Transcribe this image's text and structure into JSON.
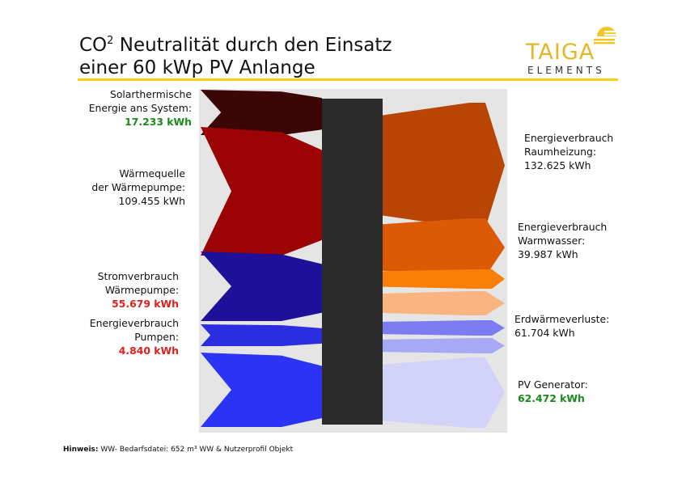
{
  "header": {
    "title_prefix": "CO",
    "title_sup": "2",
    "title_line1_rest": " Neutralität durch den Einsatz",
    "title_line2": "einer 60 kWp PV Anlange"
  },
  "logo": {
    "brand": "TAIGA",
    "sub": "ELEMENTS"
  },
  "colors": {
    "accent_rule": "#f7d117",
    "logo_gold": "#e3b628",
    "value_green": "#1a8a1a",
    "value_red": "#e0201e",
    "hub": "#2b2b2b",
    "background_panel": "#e5e5e5"
  },
  "inputs": [
    {
      "label_lines": [
        "Solarthermische",
        "Energie ans System:"
      ],
      "value": "17.233 kWh",
      "value_style": "green",
      "color": "#3d0606"
    },
    {
      "label_lines": [
        "Wärmequelle",
        "der Wärmepumpe:"
      ],
      "value": "109.455 kWh",
      "value_style": "plain",
      "color": "#9c0305"
    },
    {
      "label_lines": [
        "Stromverbrauch",
        "Wärmepumpe:"
      ],
      "value": "55.679 kWh",
      "value_style": "red",
      "color": "#1f109a"
    },
    {
      "label_lines": [
        "Energieverbrauch",
        "Pumpen:"
      ],
      "value": "4.840 kWh",
      "value_style": "red",
      "color": "#2a2ee0"
    },
    {
      "label_lines": [],
      "value": "",
      "value_style": "plain",
      "color": "#2c33f5"
    }
  ],
  "outputs": [
    {
      "label_lines": [
        "Energieverbrauch",
        "Raumheizung:"
      ],
      "value": "132.625 kWh",
      "value_style": "plain",
      "color": "#b84504"
    },
    {
      "label_lines": [
        "Energieverbrauch",
        "Warmwasser:"
      ],
      "value": "39.987 kWh",
      "value_style": "plain",
      "color": "#dc5a05"
    },
    {
      "label_lines": [],
      "value": "",
      "value_style": "plain",
      "color": "#fb7e08"
    },
    {
      "label_lines": [],
      "value": "",
      "value_style": "plain",
      "color": "#f9b480"
    },
    {
      "label_lines": [
        "Erdwärmeverluste:"
      ],
      "value": "61.704 kWh",
      "value_style": "plain",
      "color": "#7b7cf2"
    },
    {
      "label_lines": [],
      "value": "",
      "value_style": "plain",
      "color": "#a8a9f6"
    },
    {
      "label_lines": [
        "PV Generator:"
      ],
      "value": "62.472 kWh",
      "value_style": "green",
      "color": "#d3d3f9"
    }
  ],
  "footnote": {
    "prefix": "Hinweis:",
    "text": " WW- Bedarfsdatei: 652 m³ WW & Nutzerprofil Objekt"
  }
}
